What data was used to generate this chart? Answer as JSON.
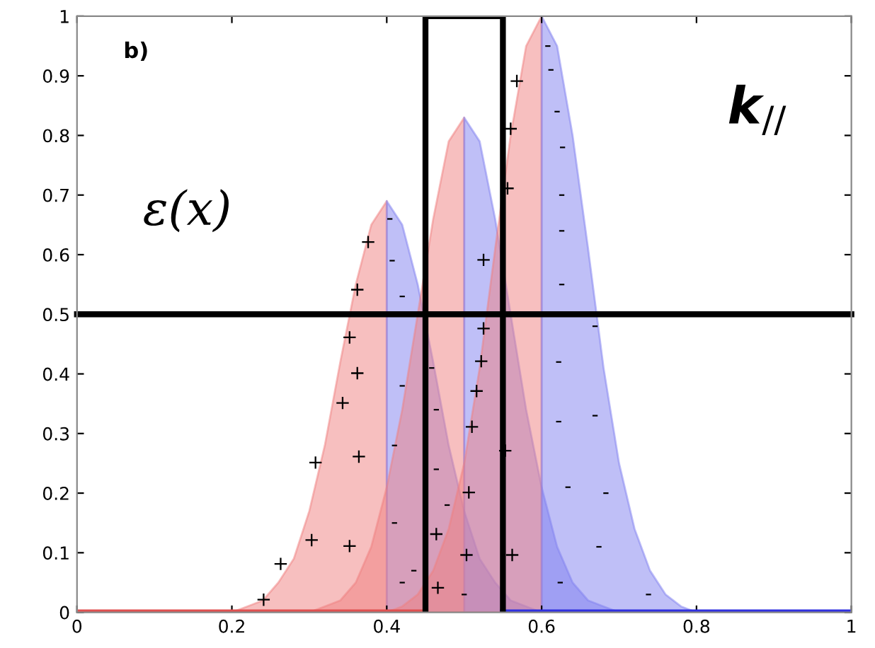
{
  "chart_data": {
    "type": "area",
    "xlim": [
      0,
      1
    ],
    "ylim": [
      0,
      1
    ],
    "xticks": [
      0,
      0.2,
      0.4,
      0.6,
      0.8,
      1
    ],
    "yticks": [
      0,
      0.1,
      0.2,
      0.3,
      0.4,
      0.5,
      0.6,
      0.7,
      0.8,
      0.9,
      1
    ],
    "grid": false,
    "legend": false,
    "series": [
      {
        "color": "#e05050",
        "type": "line",
        "x": [
          0,
          0.45
        ],
        "values": [
          0,
          0
        ]
      },
      {
        "color": "#3030e0",
        "type": "line",
        "x": [
          0.55,
          1
        ],
        "values": [
          0,
          0
        ]
      },
      {
        "color": "#f08080",
        "x": [
          0.2,
          0.22,
          0.24,
          0.26,
          0.28,
          0.3,
          0.32,
          0.34,
          0.36,
          0.38,
          0.4
        ],
        "values": [
          0,
          0.01,
          0.02,
          0.05,
          0.09,
          0.17,
          0.28,
          0.42,
          0.55,
          0.65,
          0.69
        ]
      },
      {
        "color": "#8080f0",
        "x": [
          0.4,
          0.42,
          0.44,
          0.46,
          0.48,
          0.5,
          0.52,
          0.54,
          0.56,
          0.58,
          0.6
        ],
        "values": [
          0.69,
          0.65,
          0.55,
          0.42,
          0.28,
          0.17,
          0.09,
          0.05,
          0.02,
          0.01,
          0
        ]
      },
      {
        "color": "#f08080",
        "x": [
          0.3,
          0.32,
          0.34,
          0.36,
          0.38,
          0.4,
          0.42,
          0.44,
          0.46,
          0.48,
          0.5
        ],
        "values": [
          0,
          0.01,
          0.02,
          0.05,
          0.11,
          0.21,
          0.34,
          0.5,
          0.66,
          0.79,
          0.83
        ]
      },
      {
        "color": "#8080f0",
        "x": [
          0.5,
          0.52,
          0.54,
          0.56,
          0.58,
          0.6,
          0.62,
          0.64,
          0.66,
          0.68,
          0.7
        ],
        "values": [
          0.83,
          0.79,
          0.66,
          0.5,
          0.34,
          0.21,
          0.11,
          0.05,
          0.02,
          0.01,
          0
        ]
      },
      {
        "color": "#f08080",
        "x": [
          0.4,
          0.42,
          0.44,
          0.46,
          0.48,
          0.5,
          0.52,
          0.54,
          0.56,
          0.58,
          0.6
        ],
        "values": [
          0,
          0.01,
          0.03,
          0.07,
          0.14,
          0.25,
          0.41,
          0.61,
          0.8,
          0.95,
          1
        ]
      },
      {
        "color": "#8080f0",
        "x": [
          0.6,
          0.62,
          0.64,
          0.66,
          0.68,
          0.7,
          0.72,
          0.74,
          0.76,
          0.78,
          0.8
        ],
        "values": [
          1,
          0.95,
          0.8,
          0.61,
          0.41,
          0.25,
          0.14,
          0.07,
          0.03,
          0.01,
          0
        ]
      },
      {
        "color": "#000000",
        "type": "line",
        "x": [
          0.45,
          0.45,
          0.55,
          0.55
        ],
        "values": [
          0,
          1,
          1,
          0
        ]
      }
    ],
    "ref_lines": [
      {
        "axis": "y",
        "value": 0.5,
        "color": "#000000"
      }
    ],
    "annotations": [
      "b)",
      "ε(x)",
      "k$_{//}$",
      "+",
      "+",
      "+",
      "+",
      "+",
      "+",
      "+",
      "+",
      "+",
      "+",
      "+",
      "-",
      "-",
      "-",
      "-",
      "-",
      "-",
      "-",
      "+",
      "+",
      "+",
      "+",
      "+",
      "+",
      "+",
      "+",
      "-",
      "-",
      "-",
      "-",
      "-",
      "-",
      "+",
      "+",
      "+",
      "+",
      "+",
      "+",
      "-",
      "-",
      "-",
      "-",
      "-",
      "-",
      "-",
      "-",
      "-",
      "-",
      "-",
      "-",
      "-",
      "-",
      "-",
      "-"
    ]
  }
}
